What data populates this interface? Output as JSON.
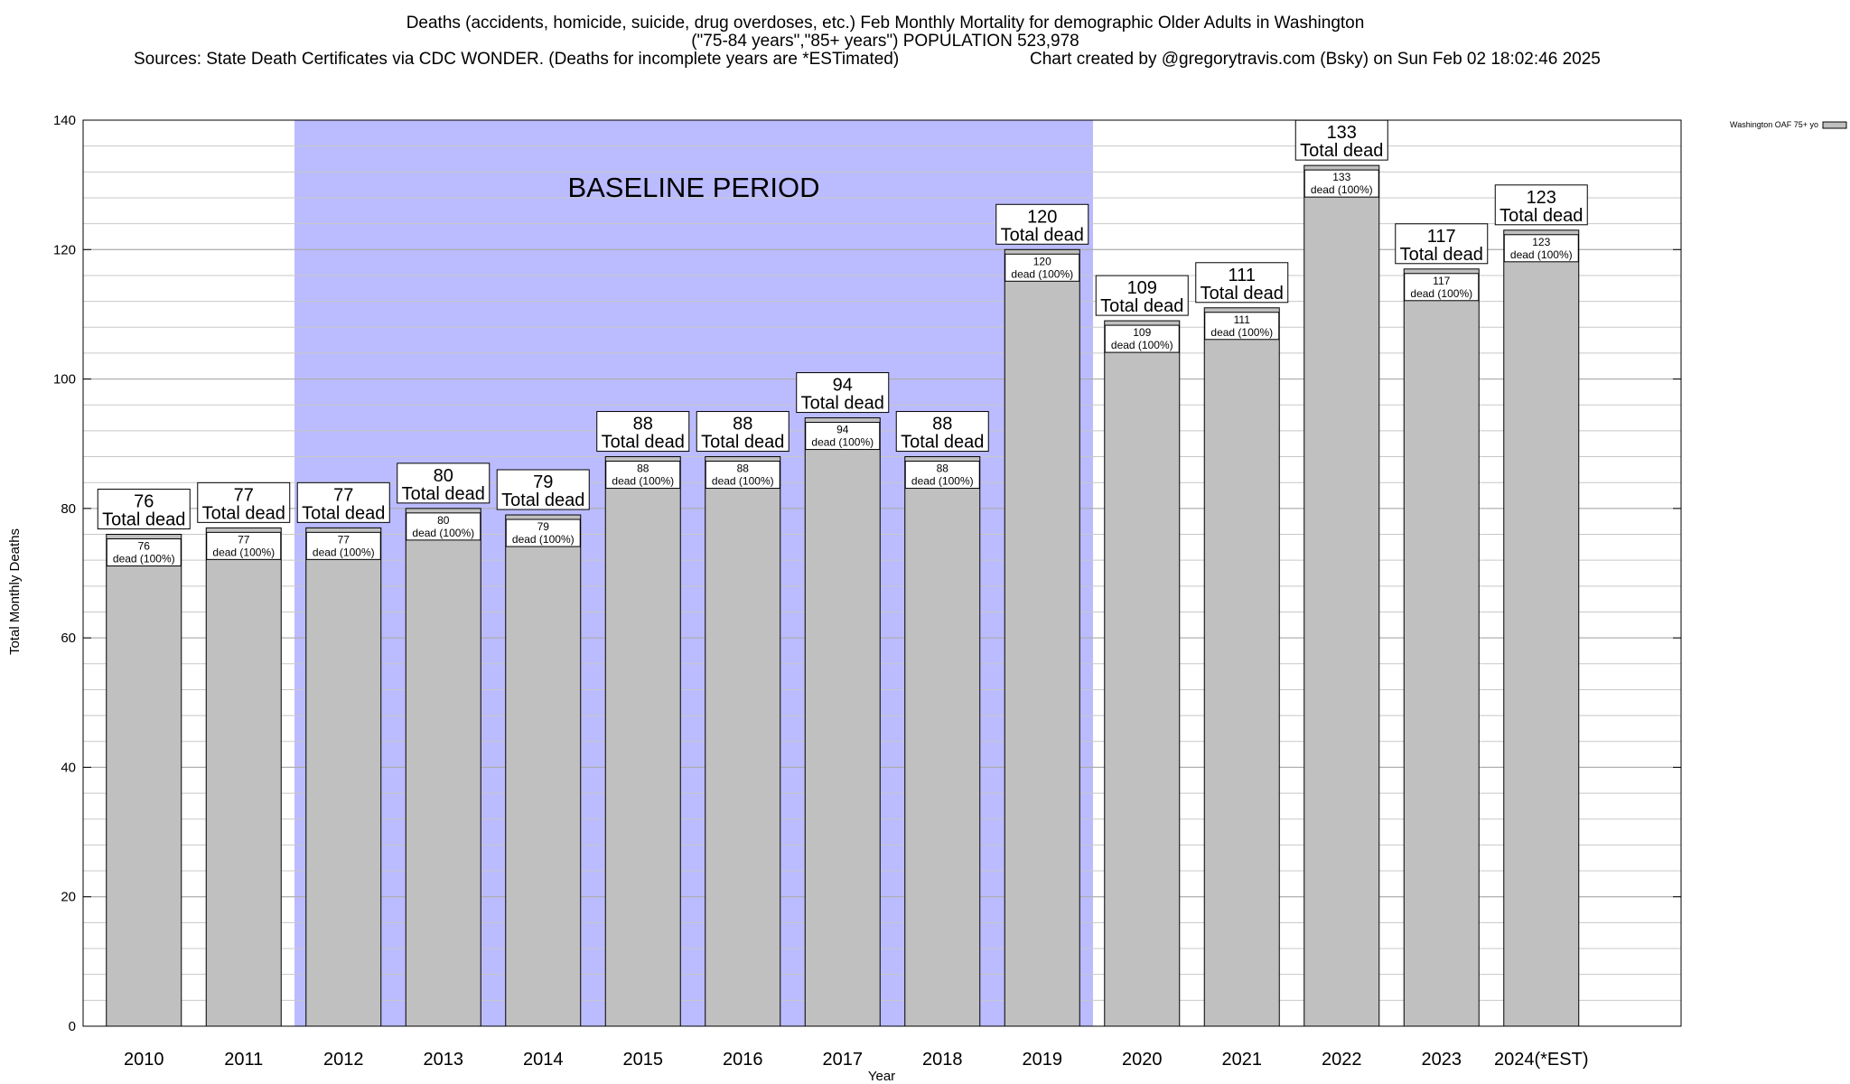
{
  "chart_data": {
    "type": "bar",
    "title_lines": [
      "Deaths (accidents, homicide, suicide, drug overdoses, etc.) Feb Monthly Mortality for demographic Older Adults in Washington",
      "(\"75-84 years\",\"85+ years\") POPULATION 523,978"
    ],
    "sources": "Sources: State Death Certificates via CDC WONDER. (Deaths for incomplete years are *ESTimated)",
    "credit": "Chart created by @gregorytravis.com (Bsky) on Sun Feb 02 18:02:46 2025",
    "xlabel": "Year",
    "ylabel": "Total Monthly Deaths",
    "ylim": [
      0,
      140
    ],
    "y_ticks": [
      0,
      20,
      40,
      60,
      80,
      100,
      120,
      140
    ],
    "grid": true,
    "legend": {
      "position": "top-right",
      "label": "Washington OAF 75+ yo"
    },
    "baseline": {
      "label": "BASELINE PERIOD",
      "from": "2012",
      "to": "2019",
      "color": "#bbbbff"
    },
    "bar_color": "#c0c0c0",
    "categories": [
      "2010",
      "2011",
      "2012",
      "2013",
      "2014",
      "2015",
      "2016",
      "2017",
      "2018",
      "2019",
      "2020",
      "2021",
      "2022",
      "2023",
      "2024(*EST)"
    ],
    "values": [
      76,
      77,
      77,
      80,
      79,
      88,
      88,
      94,
      88,
      120,
      109,
      111,
      133,
      117,
      123
    ],
    "top_label_suffix": "Total dead",
    "inner_label_suffix": "dead (100%)"
  }
}
